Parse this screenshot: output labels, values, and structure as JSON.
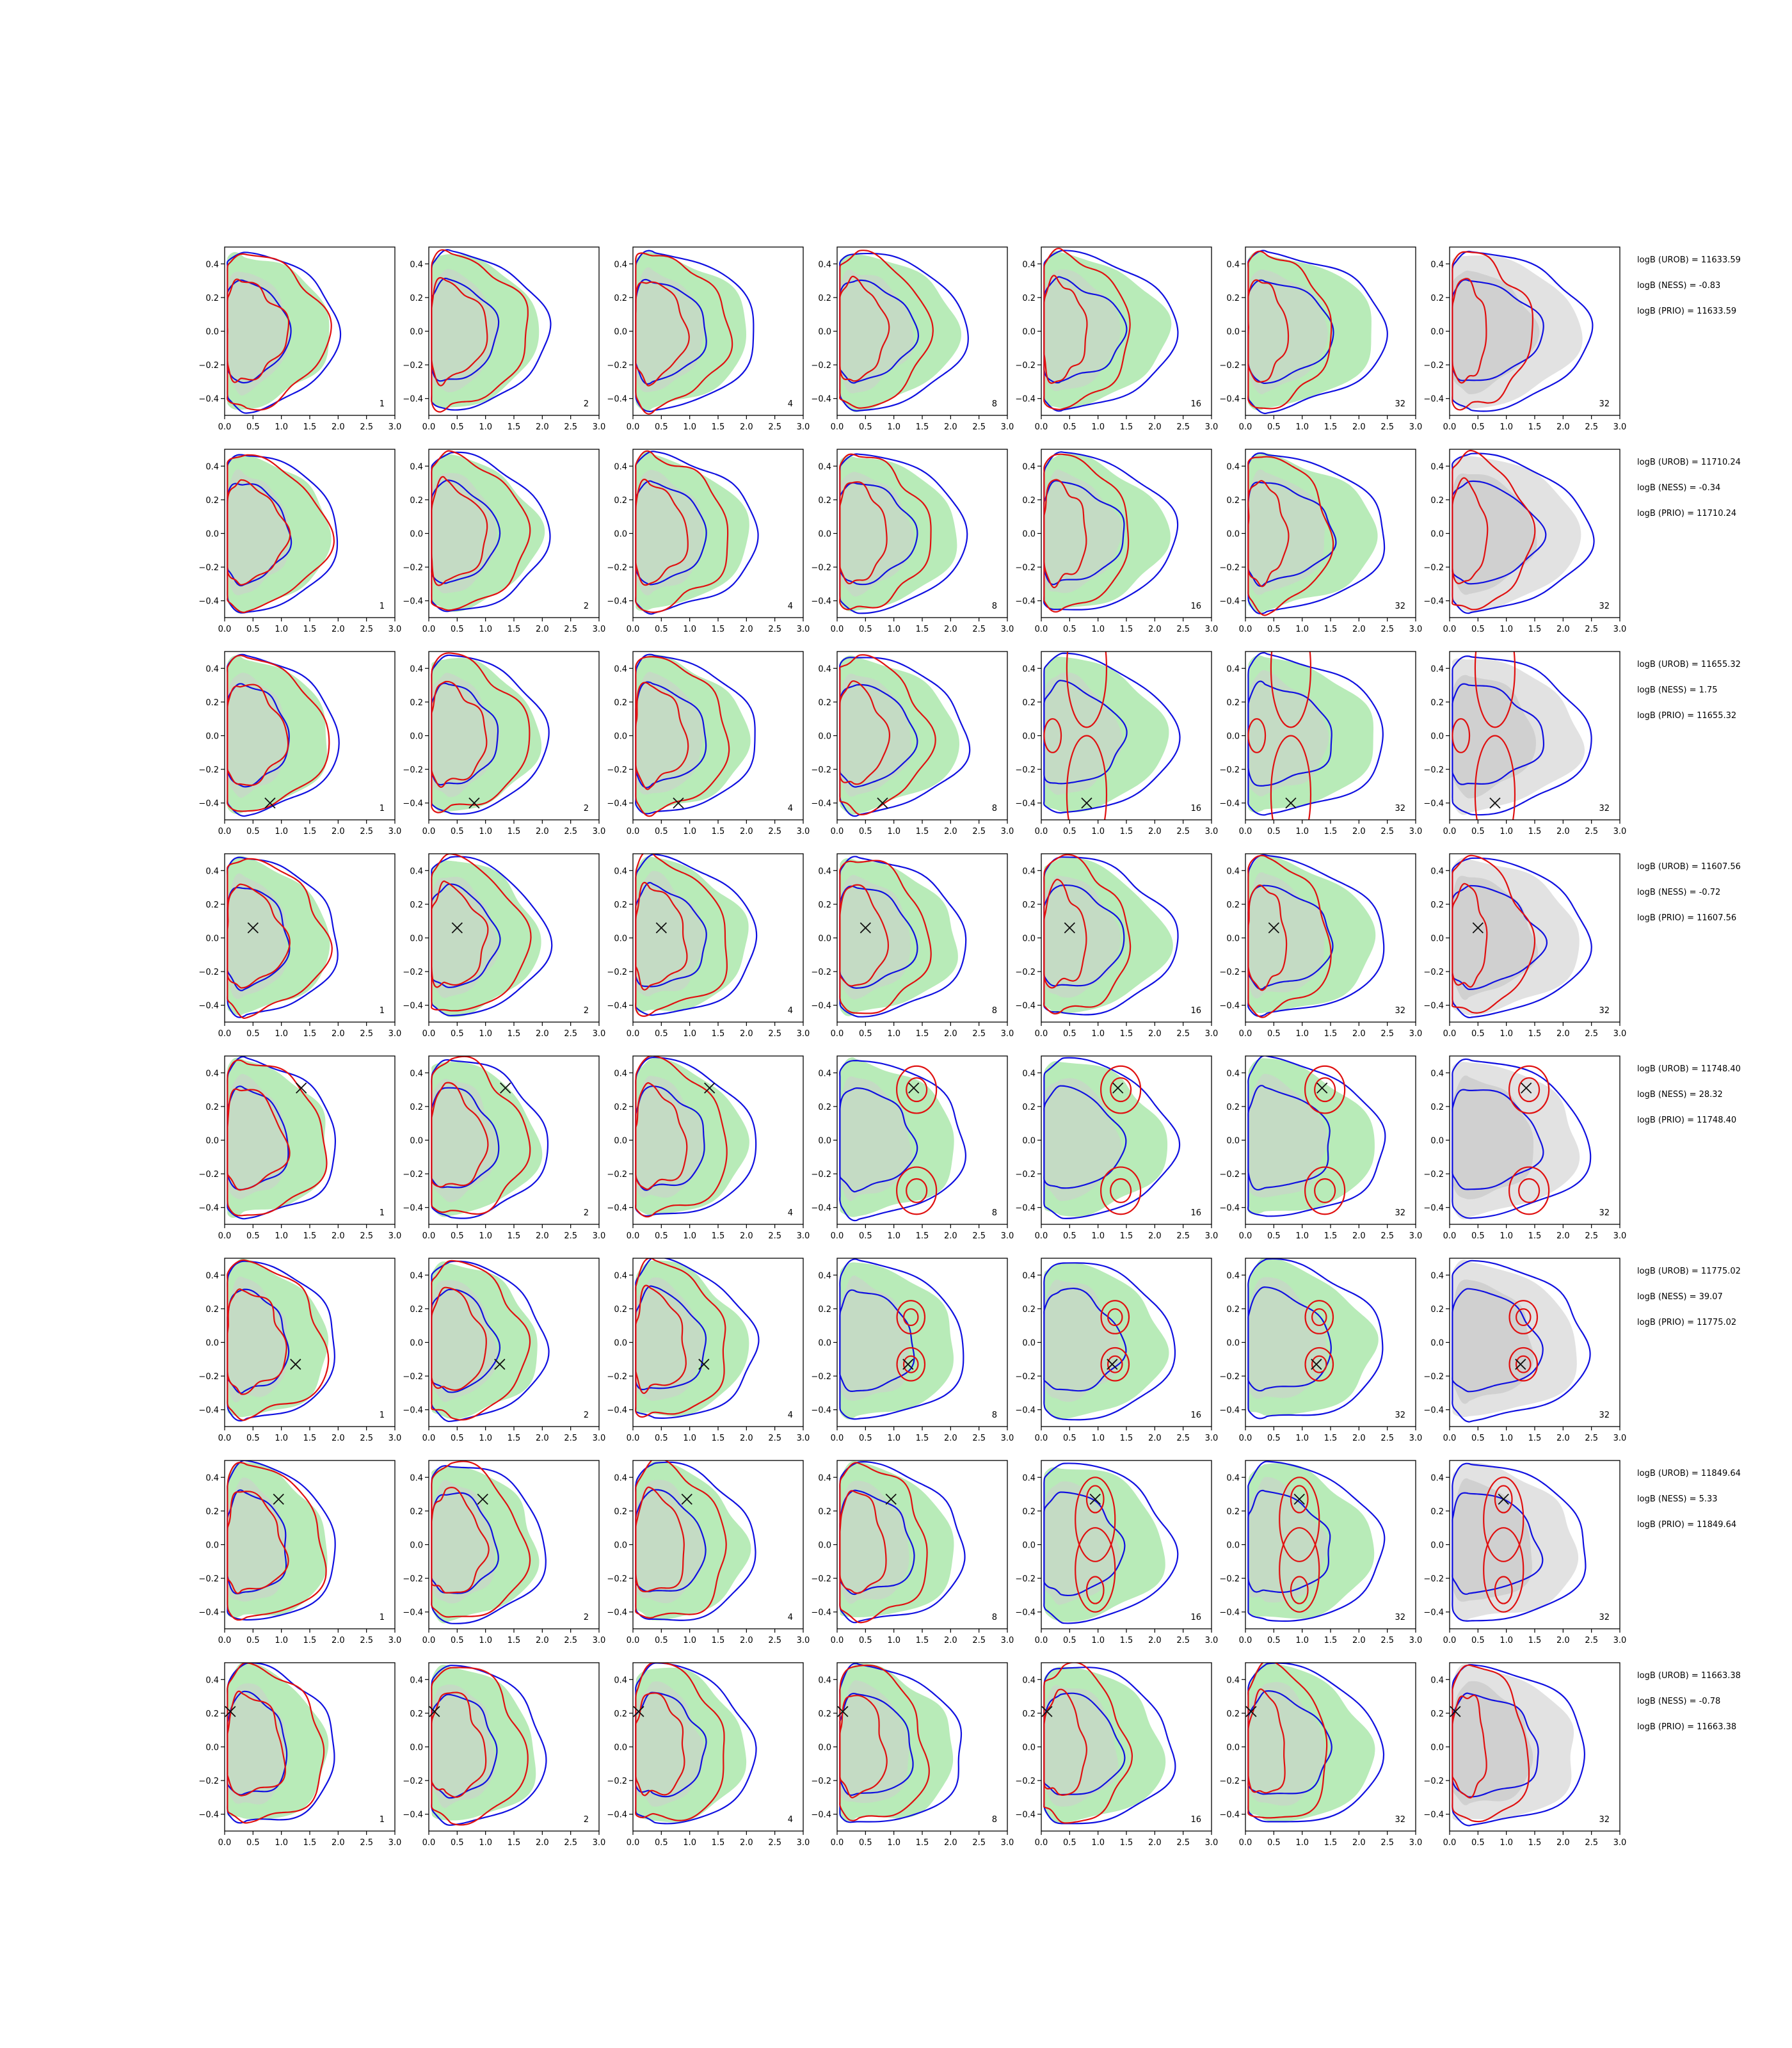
{
  "figure": {
    "colors": {
      "fill_green": "#b8ebb8",
      "fill_grey": "#cdcdcd",
      "fill_grey_outer": "#e2e2e2",
      "blue": "#1010e0",
      "red": "#e01010",
      "marker": "#111111",
      "frame": "#000000"
    }
  },
  "chart_data": {
    "type": "contour-grid",
    "panel_columns": [
      1,
      2,
      4,
      8,
      16,
      32,
      32
    ],
    "axes": {
      "xlim": [
        0.0,
        3.0
      ],
      "ylim": [
        -0.5,
        0.5
      ],
      "xticks": [
        "0.0",
        "0.5",
        "1.0",
        "1.5",
        "2.0",
        "2.5",
        "3.0"
      ],
      "yticks": [
        "−0.4",
        "−0.2",
        "0.0",
        "0.2",
        "0.4"
      ],
      "ytick_values": [
        -0.4,
        -0.2,
        0.0,
        0.2,
        0.4
      ],
      "xtick_values": [
        0.0,
        0.5,
        1.0,
        1.5,
        2.0,
        2.5,
        3.0
      ]
    },
    "rows": [
      {
        "marker": null,
        "mode": "uni",
        "stats": [
          "logB (UROB) = 11633.59",
          "logB (NESS) = -0.83",
          "logB (PRIO) = 11633.59"
        ]
      },
      {
        "marker": null,
        "mode": "uni",
        "stats": [
          "logB (UROB) = 11710.24",
          "logB (NESS) = -0.34",
          "logB (PRIO) = 11710.24"
        ]
      },
      {
        "marker": [
          0.8,
          -0.4
        ],
        "mode": "vertical",
        "stats": [
          "logB (UROB) = 11655.32",
          "logB (NESS) = 1.75",
          "logB (PRIO) = 11655.32"
        ]
      },
      {
        "marker": [
          0.5,
          0.06
        ],
        "mode": "uni",
        "stats": [
          "logB (UROB) = 11607.56",
          "logB (NESS) = -0.72",
          "logB (PRIO) = 11607.56"
        ]
      },
      {
        "marker": [
          1.35,
          0.31
        ],
        "mode": "bimodal",
        "stats": [
          "logB (UROB) = 11748.40",
          "logB (NESS) = 28.32",
          "logB (PRIO) = 11748.40"
        ]
      },
      {
        "marker": [
          1.25,
          -0.13
        ],
        "mode": "bimodal-small",
        "stats": [
          "logB (UROB) = 11775.02",
          "logB (NESS) = 39.07",
          "logB (PRIO) = 11775.02"
        ]
      },
      {
        "marker": [
          0.95,
          0.27
        ],
        "mode": "snake",
        "stats": [
          "logB (UROB) = 11849.64",
          "logB (NESS) = 5.33",
          "logB (PRIO) = 11849.64"
        ]
      },
      {
        "marker": [
          0.1,
          0.21
        ],
        "mode": "uni",
        "stats": [
          "logB (UROB) = 11663.38",
          "logB (NESS) = -0.78",
          "logB (PRIO) = 11663.38"
        ]
      }
    ]
  }
}
